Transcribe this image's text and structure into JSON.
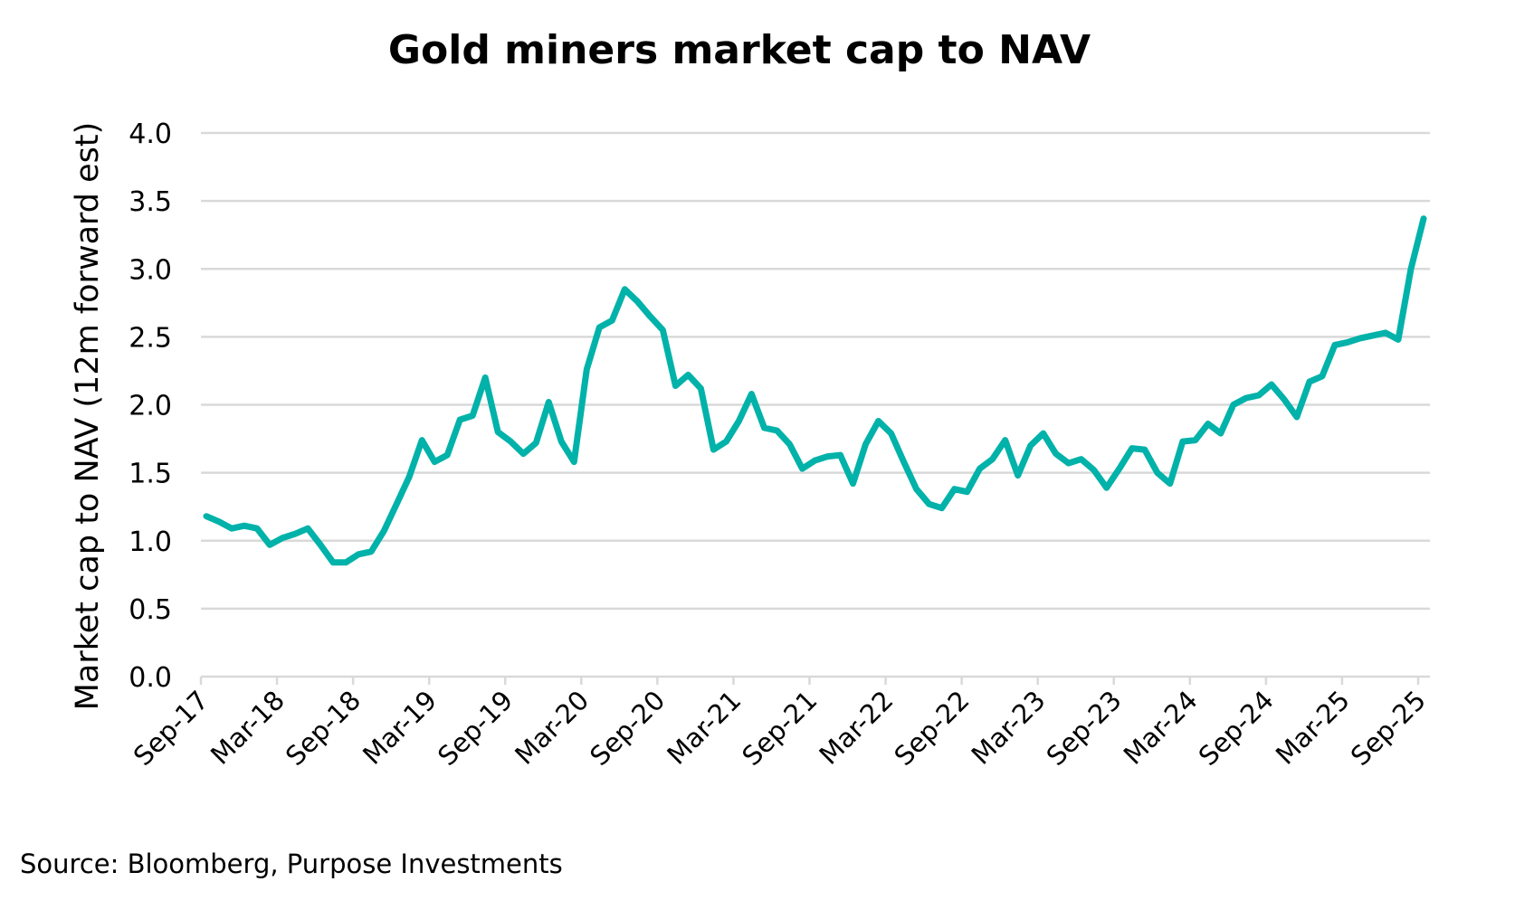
{
  "chart_data": {
    "type": "line",
    "title": "Gold miners market cap to NAV",
    "xlabel": "",
    "ylabel": "Market cap to NAV (12m forward est)",
    "ylim": [
      0,
      4
    ],
    "yticks": [
      "0.0",
      "0.5",
      "1.0",
      "1.5",
      "2.0",
      "2.5",
      "3.0",
      "3.5",
      "4.0"
    ],
    "xticks": [
      "Sep-17",
      "Mar-18",
      "Sep-18",
      "Mar-19",
      "Sep-19",
      "Mar-20",
      "Sep-20",
      "Mar-21",
      "Sep-21",
      "Mar-22",
      "Sep-22",
      "Mar-23",
      "Sep-23",
      "Mar-24",
      "Sep-24",
      "Mar-25",
      "Sep-25"
    ],
    "grid": true,
    "line_color": "#00B2A9",
    "grid_color": "#D9D9D9",
    "x": [
      "Sep-17",
      "Oct-17",
      "Nov-17",
      "Dec-17",
      "Jan-18",
      "Feb-18",
      "Mar-18",
      "Apr-18",
      "May-18",
      "Jun-18",
      "Jul-18",
      "Aug-18",
      "Sep-18",
      "Oct-18",
      "Nov-18",
      "Dec-18",
      "Jan-19",
      "Feb-19",
      "Mar-19",
      "Apr-19",
      "May-19",
      "Jun-19",
      "Jul-19",
      "Aug-19",
      "Sep-19",
      "Oct-19",
      "Nov-19",
      "Dec-19",
      "Jan-20",
      "Feb-20",
      "Mar-20",
      "Apr-20",
      "May-20",
      "Jun-20",
      "Jul-20",
      "Aug-20",
      "Sep-20",
      "Oct-20",
      "Nov-20",
      "Dec-20",
      "Jan-21",
      "Feb-21",
      "Mar-21",
      "Apr-21",
      "May-21",
      "Jun-21",
      "Jul-21",
      "Aug-21",
      "Sep-21",
      "Oct-21",
      "Nov-21",
      "Dec-21",
      "Jan-22",
      "Feb-22",
      "Mar-22",
      "Apr-22",
      "May-22",
      "Jun-22",
      "Jul-22",
      "Aug-22",
      "Sep-22",
      "Oct-22",
      "Nov-22",
      "Dec-22",
      "Jan-23",
      "Feb-23",
      "Mar-23",
      "Apr-23",
      "May-23",
      "Jun-23",
      "Jul-23",
      "Aug-23",
      "Sep-23",
      "Oct-23",
      "Nov-23",
      "Dec-23",
      "Jan-24",
      "Feb-24",
      "Mar-24",
      "Apr-24",
      "May-24",
      "Jun-24",
      "Jul-24",
      "Aug-24",
      "Sep-24",
      "Oct-24",
      "Nov-24",
      "Dec-24",
      "Jan-25",
      "Feb-25",
      "Mar-25",
      "Apr-25",
      "May-25",
      "Jun-25",
      "Jul-25",
      "Aug-25",
      "Sep-25"
    ],
    "series": [
      {
        "values": [
          1.18,
          1.14,
          1.09,
          1.11,
          1.09,
          0.97,
          1.02,
          1.05,
          1.09,
          0.97,
          0.84,
          0.84,
          0.9,
          0.92,
          1.07,
          1.27,
          1.47,
          1.74,
          1.58,
          1.63,
          1.89,
          1.92,
          2.2,
          1.8,
          1.73,
          1.64,
          1.72,
          2.02,
          1.73,
          1.58,
          2.26,
          2.57,
          2.62,
          2.85,
          2.76,
          2.65,
          2.55,
          2.14,
          2.22,
          2.12,
          1.67,
          1.73,
          1.88,
          2.08,
          1.83,
          1.81,
          1.71,
          1.53,
          1.59,
          1.62,
          1.63,
          1.42,
          1.71,
          1.88,
          1.79,
          1.58,
          1.38,
          1.27,
          1.24,
          1.38,
          1.36,
          1.53,
          1.6,
          1.74,
          1.48,
          1.7,
          1.79,
          1.64,
          1.57,
          1.6,
          1.52,
          1.39,
          1.53,
          1.68,
          1.67,
          1.5,
          1.42,
          1.73,
          1.74,
          1.86,
          1.79,
          2.0,
          2.05,
          2.07,
          2.15,
          2.04,
          1.91,
          2.17,
          2.21,
          2.44,
          2.46,
          2.49,
          2.51,
          2.53,
          2.48,
          3.0,
          3.37
        ]
      }
    ]
  },
  "source": "Source: Bloomberg, Purpose Investments"
}
